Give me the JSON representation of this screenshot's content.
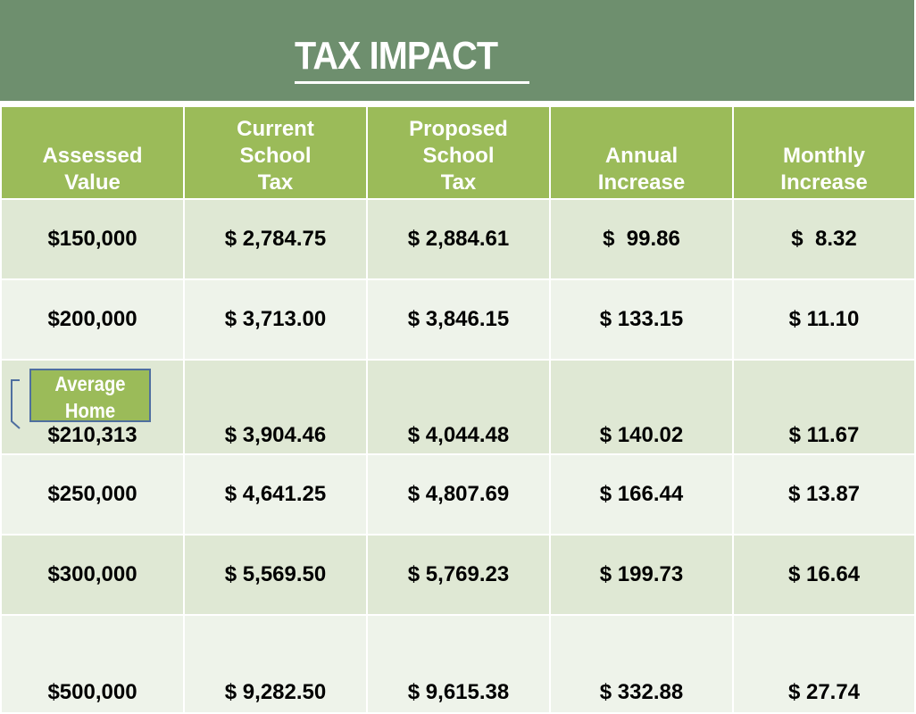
{
  "slide": {
    "title": "TAX IMPACT"
  },
  "table": {
    "headers": [
      [
        "Assessed",
        "Value"
      ],
      [
        "Current",
        "School",
        "Tax"
      ],
      [
        "Proposed",
        "School",
        "Tax"
      ],
      [
        "Annual",
        "Increase"
      ],
      [
        "Monthly",
        "Increase"
      ]
    ],
    "rows": [
      [
        "$150,000",
        "$ 2,784.75",
        "$ 2,884.61",
        "$  99.86",
        "$  8.32"
      ],
      [
        "$200,000",
        "$ 3,713.00",
        "$ 3,846.15",
        "$ 133.15",
        "$ 11.10"
      ],
      [
        "$210,313",
        "$ 3,904.46",
        "$ 4,044.48",
        "$ 140.02",
        "$ 11.67"
      ],
      [
        "$250,000",
        "$ 4,641.25",
        "$ 4,807.69",
        "$ 166.44",
        "$ 13.87"
      ],
      [
        "$300,000",
        "$ 5,569.50",
        "$ 5,769.23",
        "$ 199.73",
        "$ 16.64"
      ],
      [
        "$500,000",
        "$ 9,282.50",
        "$ 9,615.38",
        "$ 332.88",
        "$ 27.74"
      ]
    ]
  },
  "callout": {
    "line1": "Average",
    "line2": "Home"
  },
  "colors": {
    "title_bar": "#6e8f6e",
    "header_bg": "#9bbb59",
    "row_dark": "#dfe8d4",
    "row_light": "#eef3ea",
    "callout_border": "#4f6f9f"
  }
}
